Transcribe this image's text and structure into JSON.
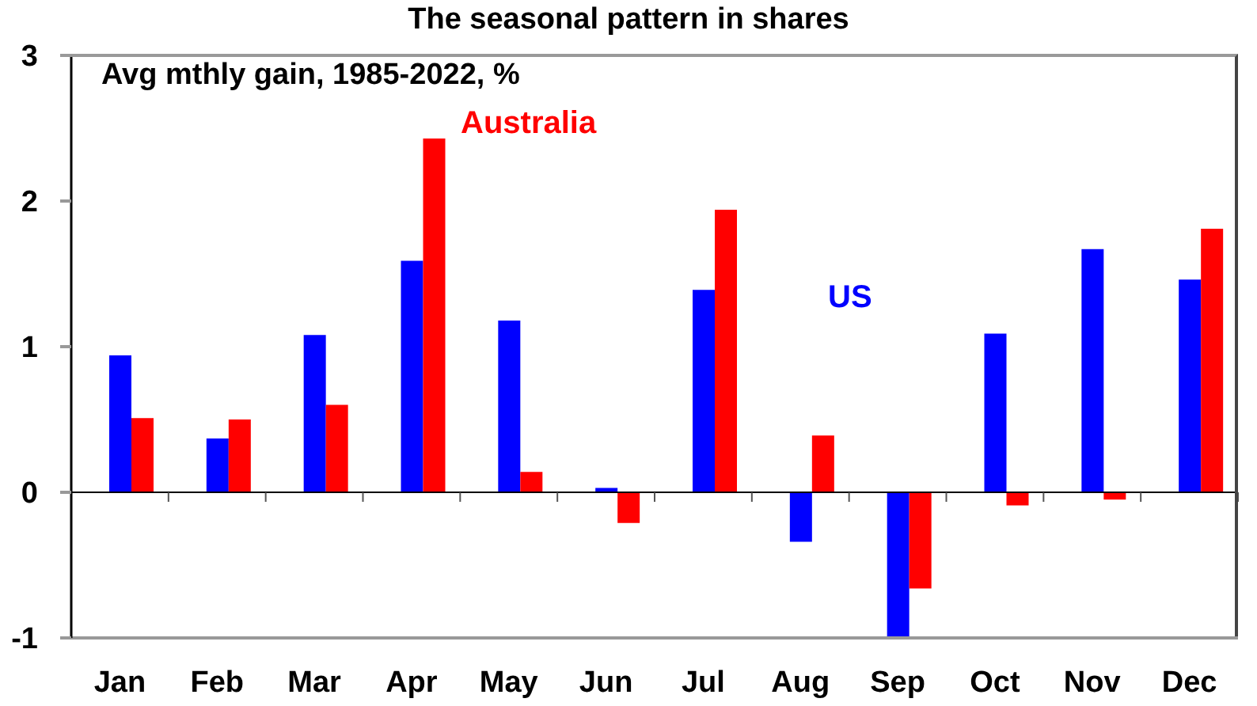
{
  "chart_data": {
    "type": "bar",
    "title": "The seasonal pattern in shares",
    "subtitle": "Avg mthly gain, 1985-2022, %",
    "categories": [
      "Jan",
      "Feb",
      "Mar",
      "Apr",
      "May",
      "Jun",
      "Jul",
      "Aug",
      "Sep",
      "Oct",
      "Nov",
      "Dec"
    ],
    "series": [
      {
        "name": "US",
        "color": "#0000ff",
        "values": [
          0.94,
          0.37,
          1.08,
          1.59,
          1.18,
          0.03,
          1.39,
          -0.34,
          -1.0,
          1.09,
          1.67,
          1.46
        ]
      },
      {
        "name": "Australia",
        "color": "#ff0000",
        "values": [
          0.51,
          0.5,
          0.6,
          2.43,
          0.14,
          -0.21,
          1.94,
          0.39,
          -0.66,
          -0.09,
          -0.05,
          1.81
        ]
      }
    ],
    "ylim": [
      -1,
      3
    ],
    "yticks": [
      -1,
      0,
      1,
      2,
      3
    ]
  }
}
